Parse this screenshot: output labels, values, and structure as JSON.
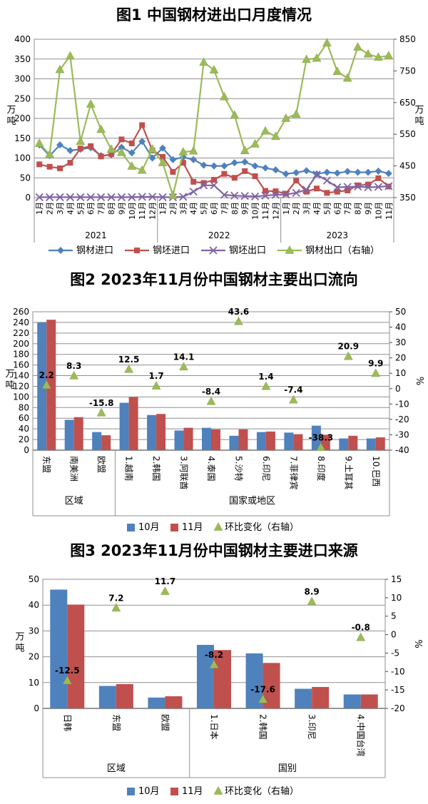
{
  "page": {
    "background": "#ffffff"
  },
  "colors": {
    "bar_oct_blue": "#4F81BD",
    "bar_nov_red": "#C0504D",
    "change_green": "#9BBB59",
    "billet_export_purple": "#8064A2",
    "grid_gray": "#8f8f8f",
    "axis_dark": "#4a4a4a"
  },
  "chart_data": [
    {
      "id": "figure1",
      "type": "line",
      "title": "图1 中国钢材进出口月度情况",
      "ylabel_left": "万吨",
      "ylabel_right": "万吨",
      "ylim_left": [
        0,
        400
      ],
      "ytick_step_left": 50,
      "ylim_right": [
        350,
        850
      ],
      "ytick_step_right": 100,
      "grid": true,
      "legend_position": "bottom",
      "year_groups": [
        {
          "label": "2021",
          "months": 12
        },
        {
          "label": "2022",
          "months": 12
        },
        {
          "label": "2023",
          "months": 11
        }
      ],
      "x_labels": [
        "1月",
        "2月",
        "3月",
        "4月",
        "5月",
        "6月",
        "7月",
        "8月",
        "9月",
        "10月",
        "11月",
        "12月",
        "1月",
        "2月",
        "3月",
        "4月",
        "5月",
        "6月",
        "7月",
        "8月",
        "9月",
        "10月",
        "11月",
        "12月",
        "1月",
        "2月",
        "3月",
        "4月",
        "5月",
        "6月",
        "7月",
        "8月",
        "9月",
        "10月",
        "11月"
      ],
      "series": [
        {
          "name": "钢材进口",
          "axis": "left",
          "marker": "diamond",
          "color": "#4F81BD",
          "values": [
            133,
            106,
            133,
            119,
            122,
            126,
            106,
            108,
            127,
            113,
            142,
            100,
            125,
            96,
            102,
            96,
            82,
            80,
            80,
            88,
            90,
            80,
            75,
            70,
            60,
            63,
            68,
            60,
            64,
            62,
            66,
            64,
            64,
            67,
            61
          ]
        },
        {
          "name": "钢坯进口",
          "axis": "left",
          "marker": "square",
          "color": "#C0504D",
          "values": [
            84,
            78,
            74,
            88,
            124,
            130,
            104,
            110,
            147,
            137,
            183,
            119,
            103,
            65,
            88,
            40,
            37,
            45,
            60,
            50,
            67,
            54,
            17,
            16,
            10,
            43,
            15,
            23,
            12,
            15,
            18,
            31,
            33,
            49,
            28
          ]
        },
        {
          "name": "钢坯出口",
          "axis": "left",
          "marker": "x",
          "color": "#8064A2",
          "values": [
            1,
            1,
            1,
            1,
            1,
            1,
            1,
            1,
            1,
            1,
            2,
            2,
            1,
            1,
            2,
            15,
            31,
            31,
            7,
            5,
            4,
            3,
            5,
            7,
            8,
            12,
            20,
            58,
            43,
            26,
            27,
            28,
            26,
            27,
            29
          ]
        },
        {
          "name": "钢材出口（右轴）",
          "axis": "right",
          "marker": "triangle",
          "color": "#9BBB59",
          "values": [
            521,
            486,
            754,
            797,
            527,
            645,
            565,
            502,
            492,
            449,
            436,
            503,
            460,
            357,
            494,
            497,
            777,
            753,
            668,
            610,
            498,
            519,
            560,
            543,
            600,
            613,
            786,
            790,
            838,
            748,
            727,
            825,
            803,
            793,
            798
          ]
        }
      ]
    },
    {
      "id": "figure2",
      "type": "bar",
      "title": "图2 2023年11月份中国钢材主要出口流向",
      "ylabel_left": "万吨",
      "ylabel_right": "%",
      "ylim_left": [
        0,
        260
      ],
      "ytick_step_left": 20,
      "ylim_right": [
        -40,
        50
      ],
      "ytick_step_right": 10,
      "grid": true,
      "legend_position": "bottom",
      "groups": [
        {
          "label": "区域",
          "categories": [
            "东盟",
            "南美洲",
            "欧盟"
          ]
        },
        {
          "label": "国家或地区",
          "categories": [
            "1.越南",
            "2.韩国",
            "3.阿联酋",
            "4.泰国",
            "5.沙特",
            "6.印尼",
            "7.菲律宾",
            "8.印度",
            "9.土耳其",
            "10.巴西"
          ]
        }
      ],
      "series": [
        {
          "name": "10月",
          "axis": "left",
          "marker": "square",
          "color": "#4F81BD",
          "values": [
            240,
            57,
            34,
            89,
            66,
            37,
            42,
            27,
            34,
            33,
            46,
            22,
            22
          ]
        },
        {
          "name": "11月",
          "axis": "left",
          "marker": "square",
          "color": "#C0504D",
          "values": [
            245,
            62,
            28,
            100,
            68,
            42,
            39,
            39,
            35,
            30,
            29,
            27,
            24
          ]
        },
        {
          "name": "环比变化（右轴）",
          "axis": "right",
          "marker": "triangle",
          "color": "#9BBB59",
          "values": [
            2.2,
            8.3,
            -15.8,
            12.5,
            1.7,
            14.1,
            -8.4,
            43.6,
            1.4,
            -7.4,
            -38.3,
            20.9,
            9.9
          ]
        }
      ]
    },
    {
      "id": "figure3",
      "type": "bar",
      "title": "图3 2023年11月份中国钢材主要进口来源",
      "ylabel_left": "万吨",
      "ylabel_right": "%",
      "ylim_left": [
        0,
        50
      ],
      "ytick_step_left": 10,
      "ylim_right": [
        -20,
        15
      ],
      "ytick_step_right": 5,
      "grid": true,
      "legend_position": "bottom",
      "groups": [
        {
          "label": "区域",
          "categories": [
            "日韩",
            "东盟",
            "欧盟"
          ]
        },
        {
          "label": "国别",
          "categories": [
            "1.日本",
            "2.韩国",
            "3.印尼",
            "4.中国台湾"
          ]
        }
      ],
      "series": [
        {
          "name": "10月",
          "axis": "left",
          "marker": "square",
          "color": "#4F81BD",
          "values": [
            46,
            8.7,
            4.2,
            24.6,
            21.3,
            7.6,
            5.4
          ]
        },
        {
          "name": "11月",
          "axis": "left",
          "marker": "square",
          "color": "#C0504D",
          "values": [
            40.2,
            9.4,
            4.7,
            22.6,
            17.6,
            8.3,
            5.4
          ]
        },
        {
          "name": "环比变化（右轴）",
          "axis": "right",
          "marker": "triangle",
          "color": "#9BBB59",
          "values": [
            -12.5,
            7.2,
            11.7,
            -8.2,
            -17.6,
            8.9,
            -0.8
          ]
        }
      ]
    }
  ]
}
